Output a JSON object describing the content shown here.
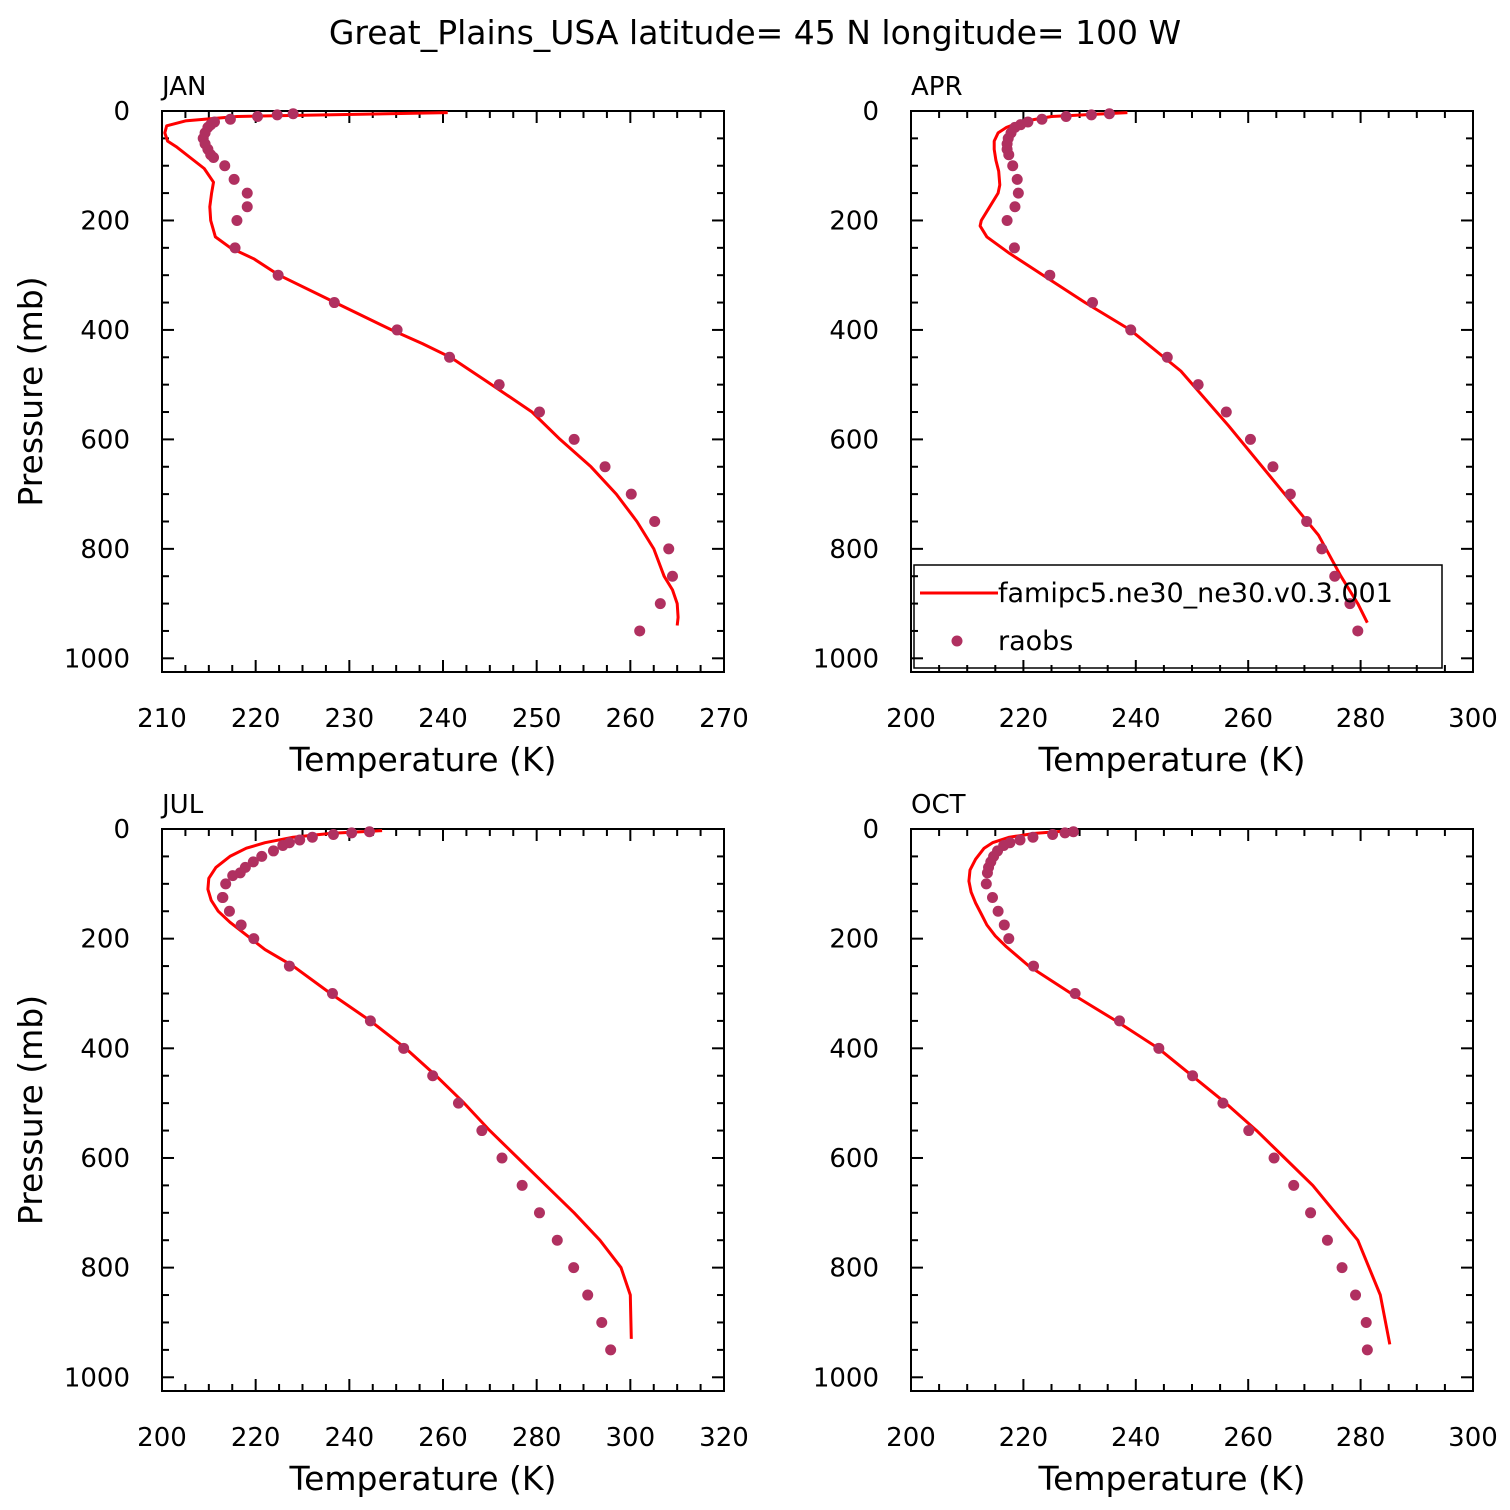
{
  "figure": {
    "title": "Great_Plains_USA  latitude= 45 N longitude= 100 W"
  },
  "legend": {
    "model_label": "famipc5.ne30_ne30.v0.3.001",
    "obs_label": "raobs"
  },
  "colors": {
    "model": "#ff0000",
    "obs": "#b03060",
    "axis": "#000000"
  },
  "chart_data": [
    {
      "type": "line",
      "panel": "JAN",
      "xlabel": "Temperature (K)",
      "ylabel": "Pressure (mb)",
      "xlim": [
        210,
        270
      ],
      "ylim": [
        1025,
        0
      ],
      "y_inverted": true,
      "xticks": [
        210,
        220,
        230,
        240,
        250,
        260,
        270
      ],
      "yticks": [
        0,
        200,
        400,
        600,
        800,
        1000
      ],
      "legend_position": "",
      "model": {
        "name": "famipc5.ne30_ne30.v0.3.001",
        "x": [
          240.5,
          218,
          212.5,
          210.5,
          210.3,
          210.6,
          211.5,
          213,
          214.5,
          215.5,
          215.3,
          215.1,
          215.2,
          215.7,
          217.3,
          219.8,
          222.5,
          228.5,
          234.5,
          237.8,
          240.8,
          245.2,
          249.5,
          252.5,
          255.8,
          258.5,
          260.7,
          262.5,
          263.6,
          264.5,
          265,
          265.1,
          265
        ],
        "y": [
          3,
          10,
          18,
          27,
          40,
          55,
          65,
          85,
          105,
          130,
          150,
          175,
          200,
          230,
          250,
          270,
          300,
          350,
          400,
          425,
          450,
          500,
          550,
          600,
          650,
          700,
          750,
          800,
          850,
          875,
          900,
          925,
          940
        ]
      },
      "obs": {
        "name": "raobs",
        "x": [
          224,
          222.3,
          220.2,
          217.3,
          215.6,
          215.2,
          214.9,
          214.6,
          214.4,
          214.6,
          214.9,
          215.2,
          215.5,
          216.7,
          217.7,
          219.1,
          219.1,
          218,
          217.8,
          222.4,
          228.4,
          235.1,
          240.7,
          246,
          250.3,
          254,
          257.3,
          260.1,
          262.6,
          264.1,
          264.5,
          263.2,
          261
        ],
        "y": [
          5,
          7,
          10,
          15,
          20,
          25,
          30,
          40,
          50,
          60,
          70,
          80,
          85,
          100,
          125,
          150,
          175,
          200,
          250,
          300,
          350,
          400,
          450,
          500,
          550,
          600,
          650,
          700,
          750,
          800,
          850,
          900,
          950
        ]
      }
    },
    {
      "type": "line",
      "panel": "APR",
      "xlabel": "Temperature (K)",
      "ylabel": "",
      "xlim": [
        200,
        300
      ],
      "ylim": [
        1025,
        0
      ],
      "y_inverted": true,
      "xticks": [
        200,
        220,
        240,
        260,
        280,
        300
      ],
      "yticks": [
        0,
        200,
        400,
        600,
        800,
        1000
      ],
      "legend_position": "bottom-right",
      "model": {
        "name": "famipc5.ne30_ne30.v0.3.001",
        "x": [
          238.5,
          225,
          219.5,
          217,
          215.5,
          214.8,
          214.8,
          215.1,
          215.6,
          215.8,
          215.5,
          214,
          212.5,
          212.3,
          213.5,
          217.5,
          223.5,
          231,
          239,
          248,
          256.5,
          260.5,
          264.5,
          268.5,
          272.5,
          276.5,
          279.5,
          281.2
        ],
        "y": [
          3,
          10,
          20,
          30,
          40,
          55,
          70,
          90,
          110,
          135,
          150,
          175,
          200,
          210,
          230,
          260,
          300,
          350,
          400,
          475,
          575,
          625,
          675,
          725,
          775,
          850,
          900,
          935
        ]
      },
      "obs": {
        "name": "raobs",
        "x": [
          235.3,
          232.1,
          227.6,
          223.3,
          220.8,
          219.5,
          218.5,
          217.8,
          217.3,
          217.1,
          217.1,
          217.4,
          218.1,
          218.9,
          219.1,
          218.5,
          217.1,
          218.4,
          224.7,
          232.3,
          239.1,
          245.6,
          251.1,
          256.1,
          260.4,
          264.4,
          267.5,
          270.4,
          273.1,
          275.4,
          278.1,
          279.5
        ],
        "y": [
          5,
          7,
          10,
          15,
          20,
          25,
          30,
          40,
          50,
          60,
          70,
          80,
          100,
          125,
          150,
          175,
          200,
          250,
          300,
          350,
          400,
          450,
          500,
          550,
          600,
          650,
          700,
          750,
          800,
          850,
          900,
          950
        ]
      }
    },
    {
      "type": "line",
      "panel": "JUL",
      "xlabel": "Temperature (K)",
      "ylabel": "Pressure (mb)",
      "xlim": [
        200,
        320
      ],
      "ylim": [
        1025,
        0
      ],
      "y_inverted": true,
      "xticks": [
        200,
        220,
        240,
        260,
        280,
        300,
        320
      ],
      "yticks": [
        0,
        200,
        400,
        600,
        800,
        1000
      ],
      "legend_position": "",
      "model": {
        "name": "famipc5.ne30_ne30.v0.3.001",
        "x": [
          247,
          236,
          228,
          222,
          218,
          214.5,
          211.5,
          210,
          209.8,
          210.5,
          212,
          214.5,
          217.5,
          222,
          228,
          236,
          244.5,
          252,
          258.5,
          264.5,
          270,
          276,
          282,
          288,
          293.5,
          298,
          300,
          300.2
        ],
        "y": [
          3,
          8,
          15,
          25,
          35,
          50,
          70,
          90,
          110,
          130,
          150,
          170,
          190,
          220,
          250,
          300,
          350,
          400,
          450,
          500,
          550,
          600,
          650,
          700,
          750,
          800,
          850,
          930
        ]
      },
      "obs": {
        "name": "raobs",
        "x": [
          244.3,
          240.5,
          236.6,
          232.1,
          229.4,
          227.2,
          225.8,
          223.8,
          221.3,
          219.5,
          217.8,
          216.7,
          215.1,
          213.6,
          213,
          212.9,
          214.4,
          216.9,
          219.6,
          227.2,
          236.4,
          244.5,
          251.6,
          257.8,
          263.3,
          268.3,
          272.6,
          276.9,
          280.6,
          284.4,
          287.9,
          290.9,
          293.9,
          295.8
        ],
        "y": [
          5,
          7,
          10,
          15,
          20,
          25,
          30,
          40,
          50,
          60,
          70,
          80,
          85,
          100,
          125,
          125,
          150,
          175,
          200,
          250,
          300,
          350,
          400,
          450,
          500,
          550,
          600,
          650,
          700,
          750,
          800,
          850,
          900,
          950
        ]
      }
    },
    {
      "type": "line",
      "panel": "OCT",
      "xlabel": "Temperature (K)",
      "ylabel": "",
      "xlim": [
        200,
        300
      ],
      "ylim": [
        1025,
        0
      ],
      "y_inverted": true,
      "xticks": [
        200,
        220,
        240,
        260,
        280,
        300
      ],
      "yticks": [
        0,
        200,
        400,
        600,
        800,
        1000
      ],
      "legend_position": "",
      "model": {
        "name": "famipc5.ne30_ne30.v0.3.001",
        "x": [
          228.5,
          222,
          217.5,
          214.5,
          213,
          211.5,
          210.5,
          210.3,
          210.7,
          211.5,
          212.5,
          213.5,
          215,
          217,
          221,
          228.5,
          236.5,
          244,
          250,
          256,
          261.5,
          266.5,
          271.5,
          275.5,
          279.5,
          283.5,
          285.2
        ],
        "y": [
          3,
          8,
          15,
          25,
          35,
          55,
          75,
          95,
          115,
          135,
          155,
          175,
          195,
          215,
          250,
          300,
          350,
          400,
          450,
          500,
          550,
          600,
          650,
          700,
          750,
          850,
          940
        ]
      },
      "obs": {
        "name": "raobs",
        "x": [
          228.9,
          227.4,
          225.2,
          221.7,
          219.4,
          217.6,
          216.5,
          215.4,
          214.7,
          214.2,
          213.8,
          213.6,
          213.4,
          214.5,
          215.5,
          216.6,
          217.4,
          221.8,
          229.2,
          237.1,
          244.1,
          250.1,
          255.5,
          260.1,
          264.6,
          268.1,
          271.1,
          274.1,
          276.7,
          279.1,
          281,
          281.2
        ],
        "y": [
          5,
          7,
          10,
          15,
          20,
          25,
          30,
          40,
          50,
          60,
          70,
          80,
          100,
          125,
          150,
          175,
          200,
          250,
          300,
          350,
          400,
          450,
          500,
          550,
          600,
          650,
          700,
          750,
          800,
          850,
          900,
          950
        ]
      }
    }
  ]
}
